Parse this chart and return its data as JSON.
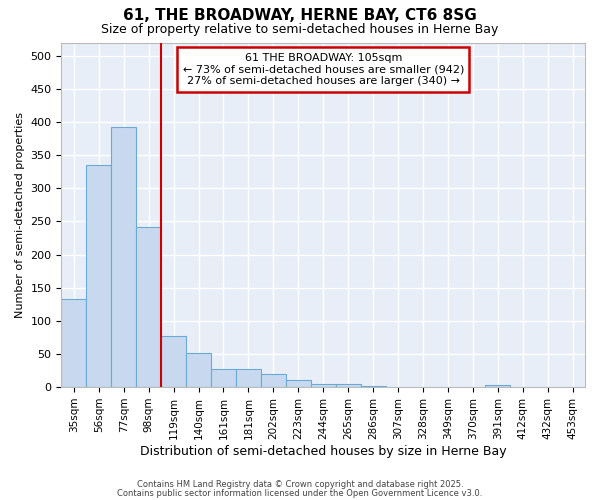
{
  "title1": "61, THE BROADWAY, HERNE BAY, CT6 8SG",
  "title2": "Size of property relative to semi-detached houses in Herne Bay",
  "xlabel": "Distribution of semi-detached houses by size in Herne Bay",
  "ylabel": "Number of semi-detached properties",
  "bar_labels": [
    "35sqm",
    "56sqm",
    "77sqm",
    "98sqm",
    "119sqm",
    "140sqm",
    "161sqm",
    "181sqm",
    "202sqm",
    "223sqm",
    "244sqm",
    "265sqm",
    "286sqm",
    "307sqm",
    "328sqm",
    "349sqm",
    "370sqm",
    "391sqm",
    "412sqm",
    "432sqm",
    "453sqm"
  ],
  "bar_values": [
    133,
    335,
    392,
    241,
    77,
    51,
    27,
    27,
    20,
    10,
    5,
    5,
    1,
    0,
    0,
    0,
    0,
    3,
    0,
    0,
    0
  ],
  "bar_color": "#c8d9ef",
  "bar_edge_color": "#6aaad4",
  "vline_x": 3.5,
  "vline_color": "#cc0000",
  "annotation_title": "61 THE BROADWAY: 105sqm",
  "annotation_line1": "← 73% of semi-detached houses are smaller (942)",
  "annotation_line2": "27% of semi-detached houses are larger (340) →",
  "annotation_box_color": "#ffffff",
  "annotation_box_edge": "#cc0000",
  "fig_background": "#ffffff",
  "plot_background": "#e8eef8",
  "grid_color": "#ffffff",
  "footnote1": "Contains HM Land Registry data © Crown copyright and database right 2025.",
  "footnote2": "Contains public sector information licensed under the Open Government Licence v3.0.",
  "ylim_max": 520,
  "yticks": [
    0,
    50,
    100,
    150,
    200,
    250,
    300,
    350,
    400,
    450,
    500
  ]
}
